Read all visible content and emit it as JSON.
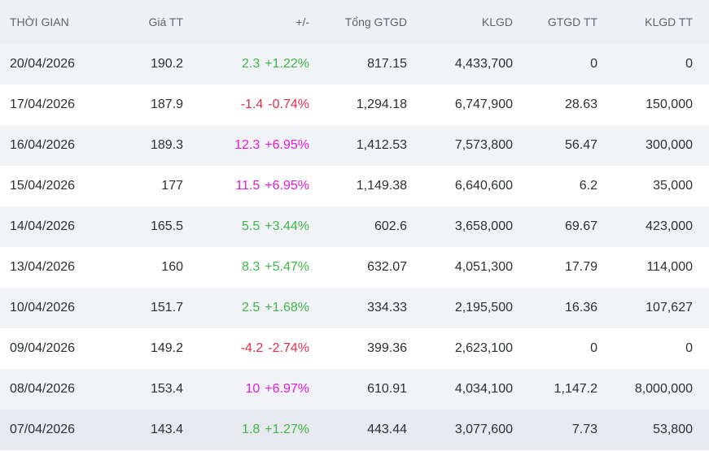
{
  "headers": [
    "THỜI GIAN",
    "Giá TT",
    "+/-",
    "Tổng GTGD",
    "KLGD",
    "GTGD TT",
    "KLGD TT"
  ],
  "colors": {
    "up": "#3db64a",
    "down": "#e0314b",
    "ceiling": "#e21ad9"
  },
  "rows": [
    {
      "date": "20/04/2026",
      "price": "190.2",
      "change": "2.3",
      "pct": "+1.22%",
      "dir": "up",
      "total": "817.15",
      "vol": "4,433,700",
      "ptval": "0",
      "ptvol": "0"
    },
    {
      "date": "17/04/2026",
      "price": "187.9",
      "change": "-1.4",
      "pct": "-0.74%",
      "dir": "down",
      "total": "1,294.18",
      "vol": "6,747,900",
      "ptval": "28.63",
      "ptvol": "150,000"
    },
    {
      "date": "16/04/2026",
      "price": "189.3",
      "change": "12.3",
      "pct": "+6.95%",
      "dir": "ceil",
      "total": "1,412.53",
      "vol": "7,573,800",
      "ptval": "56.47",
      "ptvol": "300,000"
    },
    {
      "date": "15/04/2026",
      "price": "177",
      "change": "11.5",
      "pct": "+6.95%",
      "dir": "ceil",
      "total": "1,149.38",
      "vol": "6,640,600",
      "ptval": "6.2",
      "ptvol": "35,000"
    },
    {
      "date": "14/04/2026",
      "price": "165.5",
      "change": "5.5",
      "pct": "+3.44%",
      "dir": "up",
      "total": "602.6",
      "vol": "3,658,000",
      "ptval": "69.67",
      "ptvol": "423,000"
    },
    {
      "date": "13/04/2026",
      "price": "160",
      "change": "8.3",
      "pct": "+5.47%",
      "dir": "up",
      "total": "632.07",
      "vol": "4,051,300",
      "ptval": "17.79",
      "ptvol": "114,000"
    },
    {
      "date": "10/04/2026",
      "price": "151.7",
      "change": "2.5",
      "pct": "+1.68%",
      "dir": "up",
      "total": "334.33",
      "vol": "2,195,500",
      "ptval": "16.36",
      "ptvol": "107,627"
    },
    {
      "date": "09/04/2026",
      "price": "149.2",
      "change": "-4.2",
      "pct": "-2.74%",
      "dir": "down",
      "total": "399.36",
      "vol": "2,623,100",
      "ptval": "0",
      "ptvol": "0"
    },
    {
      "date": "08/04/2026",
      "price": "153.4",
      "change": "10",
      "pct": "+6.97%",
      "dir": "ceil",
      "total": "610.91",
      "vol": "4,034,100",
      "ptval": "1,147.2",
      "ptvol": "8,000,000"
    },
    {
      "date": "07/04/2026",
      "price": "143.4",
      "change": "1.8",
      "pct": "+1.27%",
      "dir": "up",
      "total": "443.44",
      "vol": "3,077,600",
      "ptval": "7.73",
      "ptvol": "53,800"
    }
  ]
}
